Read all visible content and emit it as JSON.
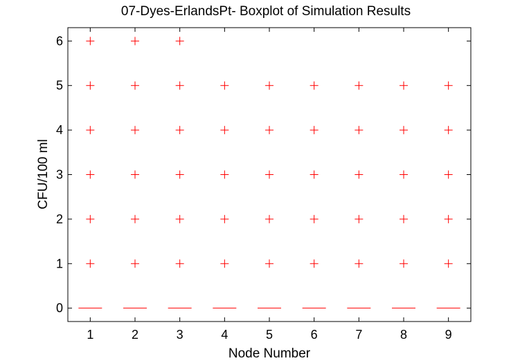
{
  "chart_data": {
    "type": "boxplot",
    "title": "07-Dyes-ErlandsPt- Boxplot of Simulation Results",
    "xlabel": "Node Number",
    "ylabel": "CFU/100 ml",
    "categories": [
      "1",
      "2",
      "3",
      "4",
      "5",
      "6",
      "7",
      "8",
      "9"
    ],
    "x_ticks": [
      "1",
      "2",
      "3",
      "4",
      "5",
      "6",
      "7",
      "8",
      "9"
    ],
    "y_ticks": [
      "0",
      "1",
      "2",
      "3",
      "4",
      "5",
      "6"
    ],
    "xlim": [
      0.5,
      9.5
    ],
    "ylim": [
      -0.3,
      6.3
    ],
    "median": [
      0,
      0,
      0,
      0,
      0,
      0,
      0,
      0,
      0
    ],
    "outliers": [
      [
        1,
        2,
        3,
        4,
        5,
        6
      ],
      [
        1,
        2,
        3,
        4,
        5,
        6
      ],
      [
        1,
        2,
        3,
        4,
        5,
        6
      ],
      [
        1,
        2,
        3,
        4,
        5
      ],
      [
        1,
        2,
        3,
        4,
        5
      ],
      [
        1,
        2,
        3,
        4,
        5
      ],
      [
        1,
        2,
        3,
        4,
        5
      ],
      [
        1,
        2,
        3,
        4,
        5
      ],
      [
        1,
        2,
        3,
        4,
        5
      ]
    ],
    "grid": false,
    "colors": {
      "median": "#ff0000",
      "outlier": "#ff0000",
      "axes": "#000000"
    }
  }
}
